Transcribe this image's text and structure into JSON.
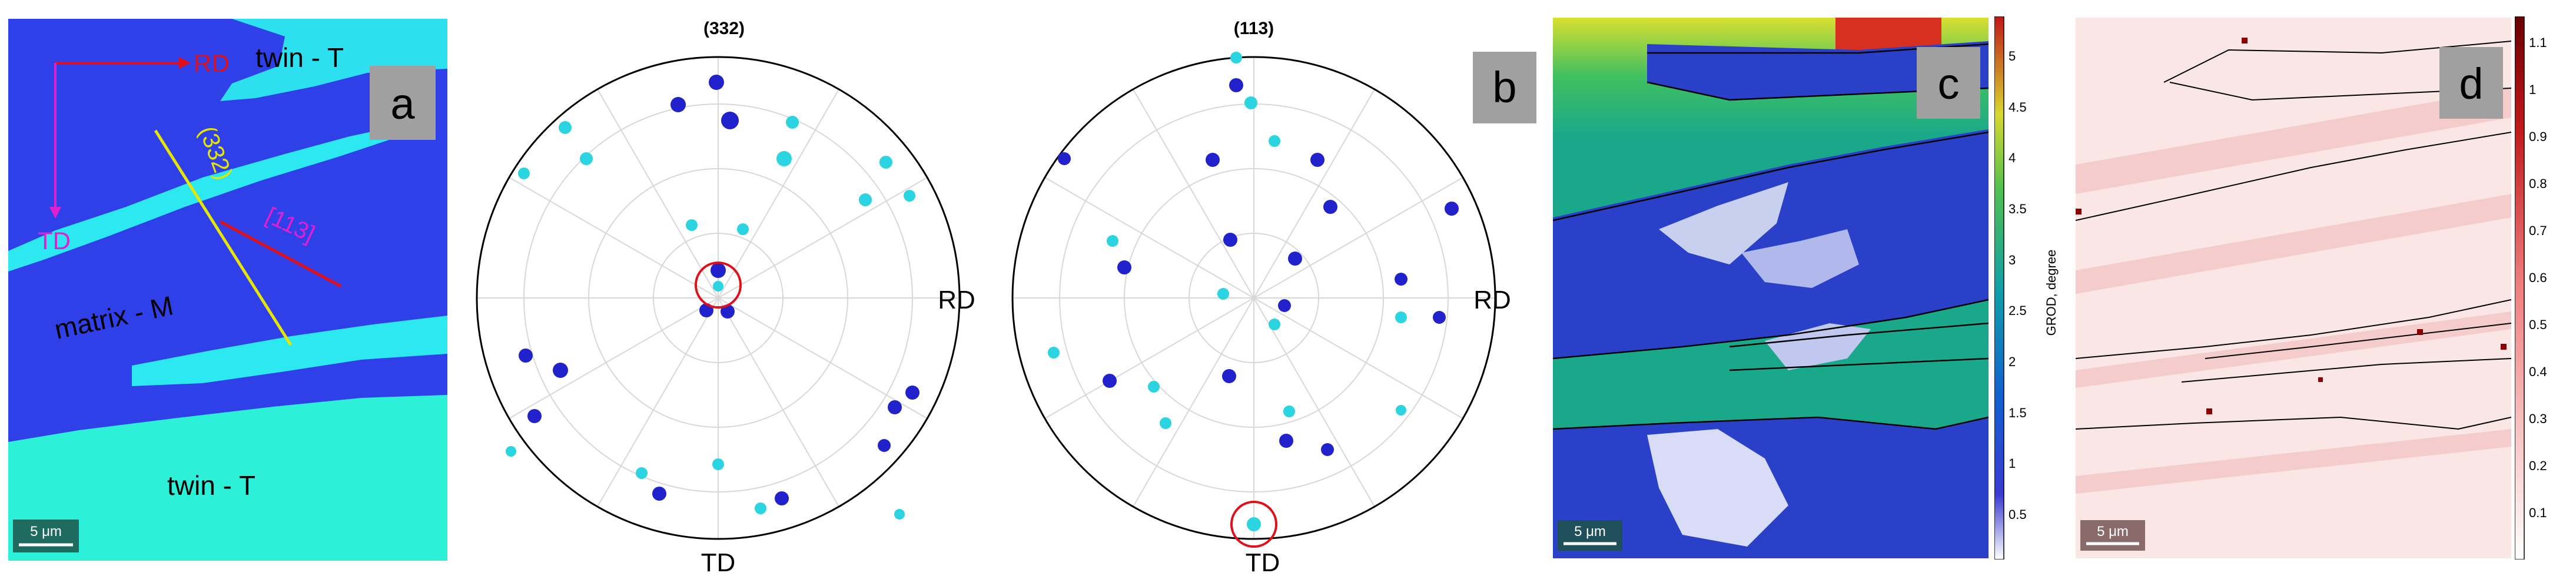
{
  "panels": {
    "a": {
      "letter": "a",
      "twin_top": "twin - T",
      "twin_bottom": "twin - T",
      "matrix": "matrix - M",
      "rd": "RD",
      "td": "TD",
      "trace_332": "(332)",
      "trace_113": "[113]",
      "scalebar": "5 μm"
    },
    "pf1": {
      "title": "(332)",
      "rd": "RD",
      "td": "TD"
    },
    "pf2": {
      "title": "(113)",
      "rd": "RD",
      "td": "TD",
      "letter": "b"
    },
    "c": {
      "letter": "c",
      "scalebar": "5 μm",
      "colorbar_label": "GROD, degree",
      "ticks": [
        "5",
        "4.5",
        "4",
        "3.5",
        "3",
        "2.5",
        "2",
        "1.5",
        "1",
        "0.5"
      ]
    },
    "d": {
      "letter": "d",
      "scalebar": "5 μm",
      "ticks": [
        "1.1",
        "1",
        "0.9",
        "0.8",
        "0.7",
        "0.6",
        "0.5",
        "0.4",
        "0.3",
        "0.2",
        "0.1"
      ]
    }
  },
  "colors": {
    "matrix_blue": "#2a3fe8",
    "twin_cyan": "#2ee6e6",
    "red": "#e0101a",
    "magenta": "#e020d0",
    "yellow": "#e6e600",
    "letter_box": "#a0a0a0"
  }
}
